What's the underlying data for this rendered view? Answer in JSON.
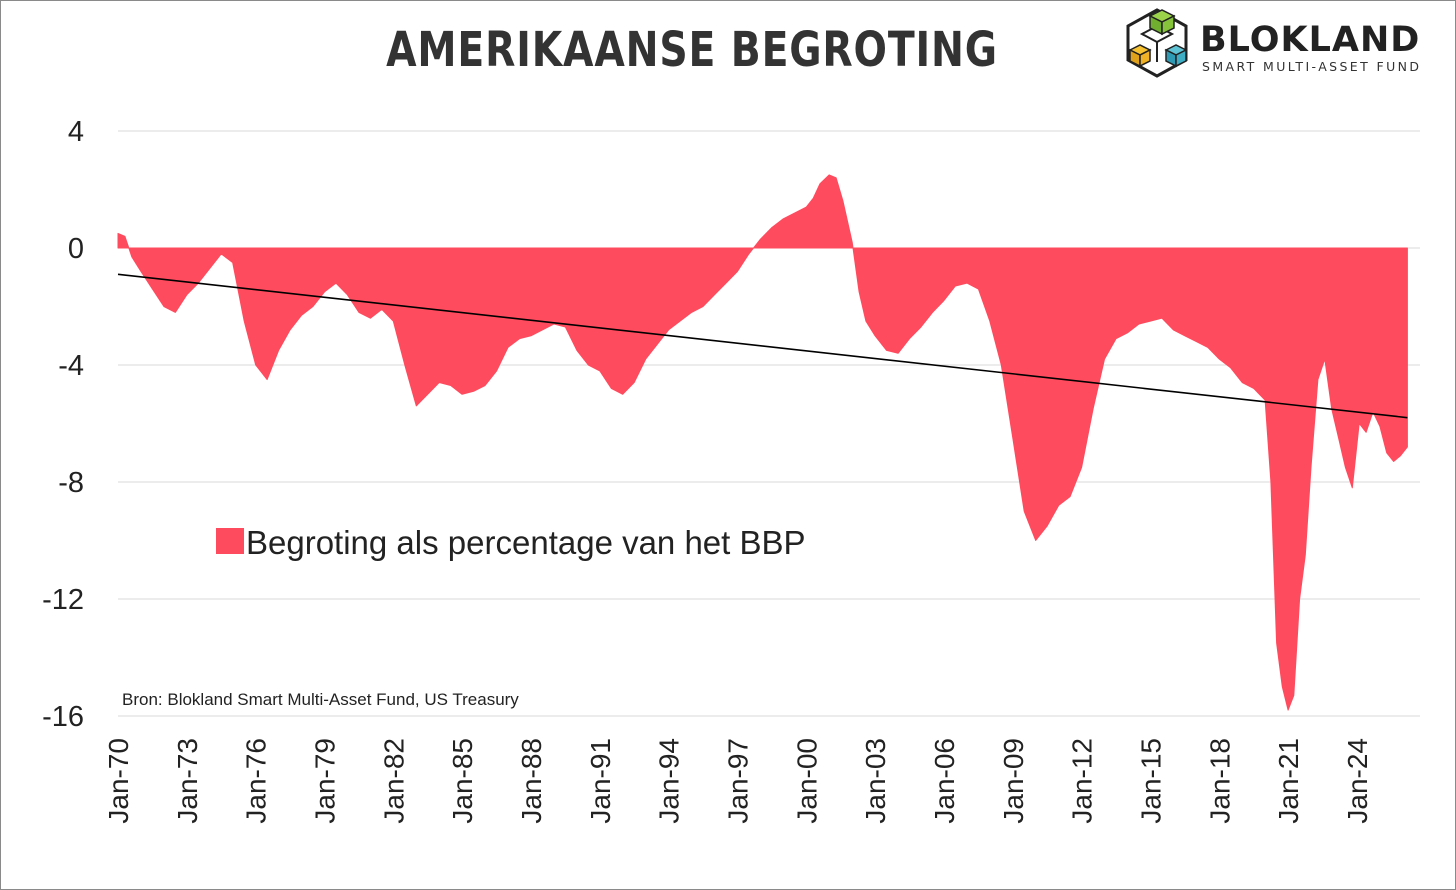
{
  "header": {
    "title": "AMERIKAANSE BEGROTING"
  },
  "logo": {
    "brand": "BLOKLAND",
    "tagline": "SMART MULTI-ASSET FUND",
    "icon": "cube-icon"
  },
  "source_note": "Bron: Blokland Smart Multi-Asset Fund, US Treasury",
  "colors": {
    "area": "#ff4b5e",
    "trend": "#000000",
    "grid": "#d9d9d9"
  },
  "chart_data": {
    "type": "area",
    "title": "AMERIKAANSE BEGROTING",
    "xlabel": "",
    "ylabel": "",
    "ylim": [
      -16,
      4
    ],
    "yticks": [
      "4",
      "0",
      "-4",
      "-8",
      "-12",
      "-16"
    ],
    "yticks_values": [
      4,
      0,
      -4,
      -8,
      -12,
      -16
    ],
    "xticks": [
      "Jan-70",
      "Jan-73",
      "Jan-76",
      "Jan-79",
      "Jan-82",
      "Jan-85",
      "Jan-88",
      "Jan-91",
      "Jan-94",
      "Jan-97",
      "Jan-00",
      "Jan-03",
      "Jan-06",
      "Jan-09",
      "Jan-12",
      "Jan-15",
      "Jan-18",
      "Jan-21",
      "Jan-24"
    ],
    "xlim": [
      1970.0,
      2026.75
    ],
    "grid": true,
    "legend_position": "left-middle",
    "series": [
      {
        "name": "Begroting als percentage van het BBP",
        "x": [
          1970.0,
          1970.3,
          1970.6,
          1971.0,
          1971.5,
          1972.0,
          1972.5,
          1973.0,
          1973.5,
          1974.0,
          1974.5,
          1975.0,
          1975.5,
          1976.0,
          1976.5,
          1977.0,
          1977.5,
          1978.0,
          1978.5,
          1979.0,
          1979.5,
          1980.0,
          1980.5,
          1981.0,
          1981.5,
          1982.0,
          1982.5,
          1983.0,
          1983.5,
          1984.0,
          1984.5,
          1985.0,
          1985.5,
          1986.0,
          1986.5,
          1987.0,
          1987.5,
          1988.0,
          1988.5,
          1989.0,
          1989.5,
          1990.0,
          1990.5,
          1991.0,
          1991.5,
          1992.0,
          1992.5,
          1993.0,
          1993.5,
          1994.0,
          1994.5,
          1995.0,
          1995.5,
          1996.0,
          1996.5,
          1997.0,
          1997.5,
          1998.0,
          1998.5,
          1999.0,
          1999.5,
          2000.0,
          2000.3,
          2000.6,
          2001.0,
          2001.3,
          2001.6,
          2002.0,
          2002.3,
          2002.6,
          2003.0,
          2003.5,
          2004.0,
          2004.5,
          2005.0,
          2005.5,
          2006.0,
          2006.5,
          2007.0,
          2007.5,
          2008.0,
          2008.5,
          2009.0,
          2009.5,
          2010.0,
          2010.5,
          2011.0,
          2011.5,
          2012.0,
          2012.5,
          2013.0,
          2013.5,
          2014.0,
          2014.5,
          2015.0,
          2015.5,
          2016.0,
          2016.5,
          2017.0,
          2017.5,
          2018.0,
          2018.5,
          2019.0,
          2019.5,
          2020.0,
          2020.25,
          2020.5,
          2020.75,
          2021.0,
          2021.25,
          2021.5,
          2021.75,
          2022.0,
          2022.3,
          2022.6,
          2022.9,
          2023.2,
          2023.5,
          2023.8,
          2024.1,
          2024.4,
          2024.7,
          2025.0,
          2025.3,
          2025.6,
          2025.9,
          2026.2
        ],
        "y": [
          0.5,
          0.4,
          -0.3,
          -0.8,
          -1.4,
          -2.0,
          -2.2,
          -1.6,
          -1.2,
          -0.7,
          -0.2,
          -0.5,
          -2.5,
          -4.0,
          -4.5,
          -3.5,
          -2.8,
          -2.3,
          -2.0,
          -1.5,
          -1.2,
          -1.6,
          -2.2,
          -2.4,
          -2.1,
          -2.5,
          -4.0,
          -5.4,
          -5.0,
          -4.6,
          -4.7,
          -5.0,
          -4.9,
          -4.7,
          -4.2,
          -3.4,
          -3.1,
          -3.0,
          -2.8,
          -2.6,
          -2.7,
          -3.5,
          -4.0,
          -4.2,
          -4.8,
          -5.0,
          -4.6,
          -3.8,
          -3.3,
          -2.8,
          -2.5,
          -2.2,
          -2.0,
          -1.6,
          -1.2,
          -0.8,
          -0.2,
          0.3,
          0.7,
          1.0,
          1.2,
          1.4,
          1.7,
          2.2,
          2.5,
          2.4,
          1.6,
          0.2,
          -1.5,
          -2.5,
          -3.0,
          -3.5,
          -3.6,
          -3.1,
          -2.7,
          -2.2,
          -1.8,
          -1.3,
          -1.2,
          -1.4,
          -2.5,
          -4.0,
          -6.5,
          -9.0,
          -10.0,
          -9.5,
          -8.8,
          -8.5,
          -7.5,
          -5.5,
          -3.8,
          -3.1,
          -2.9,
          -2.6,
          -2.5,
          -2.4,
          -2.8,
          -3.0,
          -3.2,
          -3.4,
          -3.8,
          -4.1,
          -4.6,
          -4.8,
          -5.2,
          -8.0,
          -13.5,
          -15.0,
          -15.8,
          -15.3,
          -12.0,
          -10.5,
          -7.5,
          -4.5,
          -3.8,
          -5.5,
          -6.5,
          -7.5,
          -8.2,
          -6.0,
          -6.3,
          -5.6,
          -6.1,
          -7.0,
          -7.3,
          -7.1,
          -6.8
        ]
      }
    ],
    "trendline": {
      "x": [
        1970.0,
        2026.2
      ],
      "y": [
        -0.9,
        -5.8
      ]
    }
  }
}
